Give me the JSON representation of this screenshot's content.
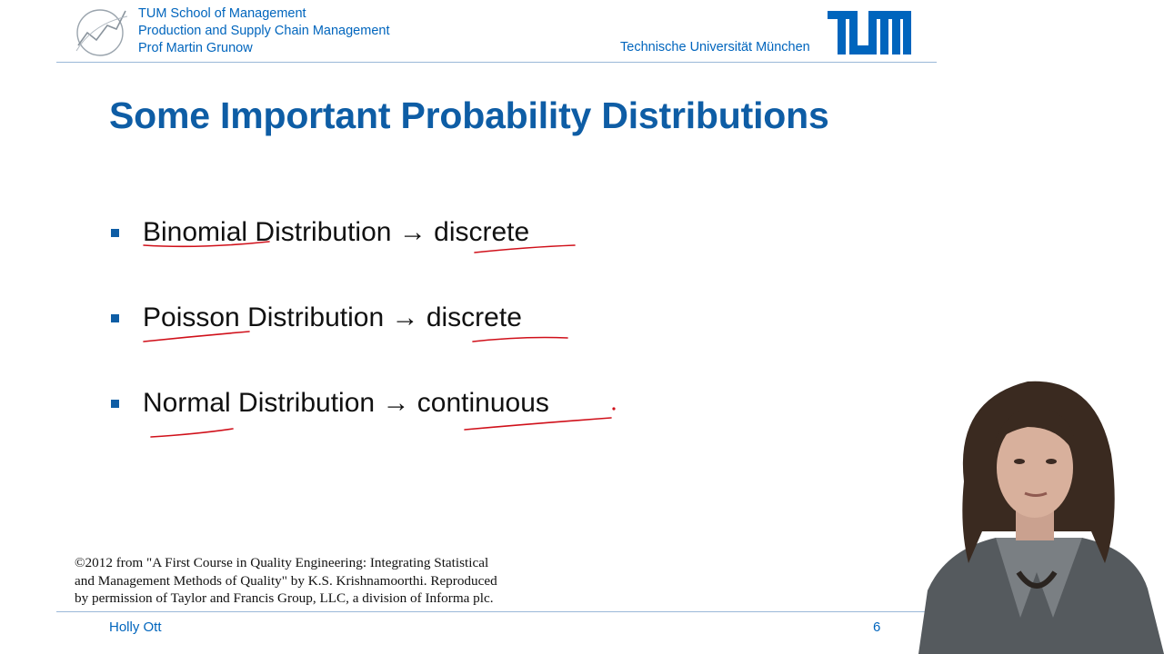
{
  "header": {
    "school": "TUM School of Management",
    "chair": "Production and Supply Chain Management",
    "professor": "Prof Martin Grunow",
    "university": "Technische Universität München",
    "logo_icon": "tum-logo-icon",
    "brand_color": "#0065bd"
  },
  "slide": {
    "title": "Some Important Probability Distributions",
    "bullets": [
      {
        "name": "Binomial",
        "rest": "Distribution",
        "arrow": "→",
        "type": "discrete"
      },
      {
        "name": "Poisson",
        "rest": "Distribution",
        "arrow": "→",
        "type": "discrete"
      },
      {
        "name": "Normal",
        "rest": "Distribution",
        "arrow": "→",
        "type": "continuous"
      }
    ],
    "annotation_color": "#d0101a"
  },
  "citation": {
    "line1": "©2012 from \"A First Course in Quality Engineering: Integrating Statistical",
    "line2": "and Management Methods of Quality\" by K.S. Krishnamoorthi. Reproduced",
    "line3": "by permission of Taylor and Francis Group, LLC, a division of Informa plc."
  },
  "footer": {
    "presenter": "Holly Ott",
    "page": "6"
  }
}
